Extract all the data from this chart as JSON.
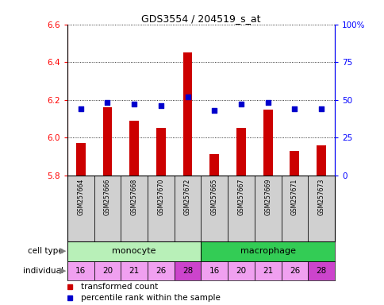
{
  "title": "GDS3554 / 204519_s_at",
  "samples": [
    "GSM257664",
    "GSM257666",
    "GSM257668",
    "GSM257670",
    "GSM257672",
    "GSM257665",
    "GSM257667",
    "GSM257669",
    "GSM257671",
    "GSM257673"
  ],
  "transformed_counts": [
    5.97,
    6.16,
    6.09,
    6.05,
    6.45,
    5.91,
    6.05,
    6.15,
    5.93,
    5.96
  ],
  "percentile_ranks": [
    44,
    48,
    47,
    46,
    52,
    43,
    47,
    48,
    44,
    44
  ],
  "ylim_left": [
    5.8,
    6.6
  ],
  "ylim_right": [
    0,
    100
  ],
  "yticks_left": [
    5.8,
    6.0,
    6.2,
    6.4,
    6.6
  ],
  "yticks_right": [
    0,
    25,
    50,
    75,
    100
  ],
  "ytick_labels_right": [
    "0",
    "25",
    "50",
    "75",
    "100%"
  ],
  "cell_type_groups": [
    {
      "label": "monocyte",
      "start": 0,
      "end": 5,
      "color": "#b8f0b8"
    },
    {
      "label": "macrophage",
      "start": 5,
      "end": 10,
      "color": "#33cc55"
    }
  ],
  "individuals": [
    "16",
    "20",
    "21",
    "26",
    "28",
    "16",
    "20",
    "21",
    "26",
    "28"
  ],
  "individual_highlight": [
    false,
    false,
    false,
    false,
    true,
    false,
    false,
    false,
    false,
    true
  ],
  "individual_color_normal": "#f0a0f0",
  "individual_color_highlight": "#cc44cc",
  "bar_color": "#cc0000",
  "dot_color": "#0000cc",
  "bar_bottom": 5.8,
  "bar_width": 0.35,
  "sample_bg_color": "#d0d0d0",
  "legend_items": [
    {
      "label": "transformed count",
      "color": "#cc0000"
    },
    {
      "label": "percentile rank within the sample",
      "color": "#0000cc"
    }
  ]
}
